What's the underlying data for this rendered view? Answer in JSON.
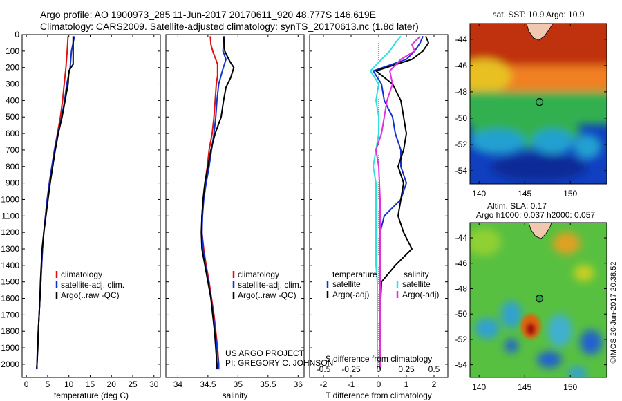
{
  "header": {
    "line1": "Argo profile: AO 1900973_285 11-Jun-2017 20170611_920 48.777S 146.619E",
    "line2": "Climatology: CARS2009. Satellite-adjusted climatology: synTS_20170613.nc (1.8d later)"
  },
  "credit": {
    "project": "US ARGO PROJECT",
    "pi": "PI: GREGORY C. JOHNSON",
    "stamp": "©IMOS 20-Jun-2017 20:38:52"
  },
  "colors": {
    "climatology": "#e01010",
    "satellite": "#1030d0",
    "argo": "#000000",
    "sal_sat": "#30e0e0",
    "sal_argo": "#e030e0"
  },
  "chart_data": [
    {
      "type": "line",
      "id": "temperature",
      "xlabel": "temperature (deg C)",
      "xlim": [
        -1,
        31.5
      ],
      "xticks": [
        0,
        5,
        10,
        15,
        20,
        25,
        30
      ],
      "ylim": [
        2080,
        0
      ],
      "yticks": [
        0,
        100,
        200,
        300,
        400,
        500,
        600,
        700,
        800,
        900,
        1000,
        1100,
        1200,
        1300,
        1400,
        1500,
        1600,
        1700,
        1800,
        1900,
        2000
      ],
      "legend": [
        "climatology",
        "satellite-adj. clim.",
        "Argo(..raw -QC)"
      ],
      "series": [
        {
          "name": "climatology",
          "color": "#e01010",
          "points": [
            [
              9.8,
              10
            ],
            [
              9.6,
              100
            ],
            [
              9.3,
              200
            ],
            [
              8.9,
              300
            ],
            [
              8.5,
              400
            ],
            [
              8.0,
              500
            ],
            [
              7.3,
              600
            ],
            [
              6.6,
              700
            ],
            [
              6.0,
              800
            ],
            [
              5.4,
              900
            ],
            [
              4.9,
              1000
            ],
            [
              4.5,
              1100
            ],
            [
              4.1,
              1200
            ],
            [
              3.8,
              1300
            ],
            [
              3.6,
              1400
            ],
            [
              3.4,
              1500
            ],
            [
              3.2,
              1600
            ],
            [
              3.0,
              1700
            ],
            [
              2.8,
              1800
            ],
            [
              2.6,
              1900
            ],
            [
              2.5,
              2000
            ],
            [
              2.4,
              2030
            ]
          ]
        },
        {
          "name": "satellite-adj. clim.",
          "color": "#1030d0",
          "points": [
            [
              11.3,
              10
            ],
            [
              11.0,
              50
            ],
            [
              10.6,
              100
            ],
            [
              10.3,
              200
            ],
            [
              9.5,
              300
            ],
            [
              9.0,
              400
            ],
            [
              8.3,
              500
            ],
            [
              7.4,
              600
            ],
            [
              6.6,
              700
            ],
            [
              6.0,
              800
            ],
            [
              5.4,
              900
            ],
            [
              4.9,
              1000
            ],
            [
              4.5,
              1100
            ],
            [
              4.1,
              1200
            ],
            [
              3.8,
              1300
            ],
            [
              3.6,
              1400
            ],
            [
              3.4,
              1500
            ],
            [
              3.2,
              1600
            ],
            [
              3.0,
              1700
            ],
            [
              2.8,
              1800
            ],
            [
              2.6,
              1900
            ],
            [
              2.5,
              2000
            ],
            [
              2.4,
              2030
            ]
          ]
        },
        {
          "name": "Argo(..raw -QC)",
          "color": "#000000",
          "points": [
            [
              11.0,
              10
            ],
            [
              11.0,
              100
            ],
            [
              11.0,
              180
            ],
            [
              10.0,
              220
            ],
            [
              9.8,
              300
            ],
            [
              9.1,
              400
            ],
            [
              8.4,
              500
            ],
            [
              7.5,
              600
            ],
            [
              6.8,
              700
            ],
            [
              6.2,
              800
            ],
            [
              5.6,
              900
            ],
            [
              5.1,
              1000
            ],
            [
              4.6,
              1100
            ],
            [
              4.1,
              1200
            ],
            [
              3.7,
              1300
            ],
            [
              3.5,
              1400
            ],
            [
              3.3,
              1500
            ],
            [
              3.2,
              1600
            ],
            [
              3.0,
              1700
            ],
            [
              2.8,
              1800
            ],
            [
              2.7,
              1900
            ],
            [
              2.5,
              2000
            ],
            [
              2.5,
              2030
            ]
          ]
        }
      ]
    },
    {
      "type": "line",
      "id": "salinity",
      "xlabel": "salinity",
      "xlim": [
        33.8,
        36.1
      ],
      "xticks": [
        34,
        34.5,
        35,
        35.5,
        36
      ],
      "ylim": [
        2080,
        0
      ],
      "legend": [
        "climatology",
        "satellite-adj. clim.",
        "Argo(..raw -QC)"
      ],
      "series": [
        {
          "name": "climatology",
          "color": "#e01010",
          "points": [
            [
              34.54,
              10
            ],
            [
              34.55,
              60
            ],
            [
              34.58,
              100
            ],
            [
              34.66,
              180
            ],
            [
              34.66,
              250
            ],
            [
              34.64,
              300
            ],
            [
              34.62,
              400
            ],
            [
              34.6,
              500
            ],
            [
              34.57,
              600
            ],
            [
              34.52,
              700
            ],
            [
              34.49,
              800
            ],
            [
              34.45,
              900
            ],
            [
              34.42,
              1000
            ],
            [
              34.4,
              1100
            ],
            [
              34.4,
              1200
            ],
            [
              34.43,
              1300
            ],
            [
              34.47,
              1400
            ],
            [
              34.52,
              1500
            ],
            [
              34.56,
              1600
            ],
            [
              34.6,
              1700
            ],
            [
              34.63,
              1800
            ],
            [
              34.66,
              1900
            ],
            [
              34.68,
              2000
            ],
            [
              34.68,
              2030
            ]
          ]
        },
        {
          "name": "satellite-adj. clim.",
          "color": "#1030d0",
          "points": [
            [
              34.78,
              10
            ],
            [
              34.76,
              50
            ],
            [
              34.75,
              100
            ],
            [
              34.8,
              150
            ],
            [
              34.74,
              220
            ],
            [
              34.68,
              300
            ],
            [
              34.65,
              400
            ],
            [
              34.63,
              500
            ],
            [
              34.6,
              600
            ],
            [
              34.56,
              700
            ],
            [
              34.52,
              800
            ],
            [
              34.47,
              900
            ],
            [
              34.43,
              1000
            ],
            [
              34.41,
              1100
            ],
            [
              34.4,
              1200
            ],
            [
              34.42,
              1300
            ],
            [
              34.46,
              1400
            ],
            [
              34.51,
              1500
            ],
            [
              34.55,
              1600
            ],
            [
              34.59,
              1700
            ],
            [
              34.62,
              1800
            ],
            [
              34.65,
              1900
            ],
            [
              34.68,
              2000
            ],
            [
              34.68,
              2030
            ]
          ]
        },
        {
          "name": "Argo(..raw -QC)",
          "color": "#000000",
          "points": [
            [
              34.76,
              10
            ],
            [
              34.78,
              100
            ],
            [
              34.86,
              160
            ],
            [
              34.93,
              200
            ],
            [
              34.88,
              260
            ],
            [
              34.8,
              320
            ],
            [
              34.76,
              400
            ],
            [
              34.72,
              500
            ],
            [
              34.62,
              600
            ],
            [
              34.55,
              700
            ],
            [
              34.5,
              800
            ],
            [
              34.45,
              900
            ],
            [
              34.42,
              1000
            ],
            [
              34.4,
              1100
            ],
            [
              34.39,
              1200
            ],
            [
              34.4,
              1300
            ],
            [
              34.45,
              1400
            ],
            [
              34.5,
              1500
            ],
            [
              34.55,
              1600
            ],
            [
              34.58,
              1700
            ],
            [
              34.61,
              1800
            ],
            [
              34.63,
              1900
            ],
            [
              34.65,
              2000
            ],
            [
              34.65,
              2030
            ]
          ]
        }
      ]
    },
    {
      "type": "line",
      "id": "difference",
      "xlabel": "T difference from climatology",
      "xlabel2": "S difference from climatology",
      "xlim": [
        -2.5,
        2.5
      ],
      "xticks": [
        -2,
        -1,
        0,
        1,
        2
      ],
      "xticks2": [
        "-0.5",
        "-0.25",
        "0",
        "0.25",
        "0.5"
      ],
      "ylim": [
        2080,
        0
      ],
      "legend": {
        "temperature_title": "temperature",
        "salinity_title": "salinity",
        "items": [
          "satellite",
          "Argo(-adj)",
          "satellite",
          "Argo(-adj)"
        ]
      },
      "series": [
        {
          "name": "temperature satellite",
          "color": "#1030d0",
          "points": [
            [
              1.6,
              10
            ],
            [
              1.5,
              50
            ],
            [
              1.3,
              100
            ],
            [
              1.0,
              150
            ],
            [
              -0.2,
              220
            ],
            [
              0.1,
              300
            ],
            [
              0.2,
              400
            ],
            [
              0.5,
              500
            ],
            [
              0.6,
              600
            ],
            [
              0.8,
              700
            ],
            [
              0.8,
              800
            ],
            [
              1.0,
              900
            ],
            [
              0.8,
              1000
            ],
            [
              0.2,
              1100
            ],
            [
              0.05,
              1200
            ],
            [
              0.05,
              1300
            ],
            [
              0.05,
              1500
            ],
            [
              0.05,
              1700
            ],
            [
              0.05,
              1900
            ],
            [
              0.05,
              2030
            ]
          ]
        },
        {
          "name": "temperature Argo(-adj)",
          "color": "#000000",
          "points": [
            [
              1.7,
              10
            ],
            [
              1.8,
              50
            ],
            [
              1.6,
              100
            ],
            [
              1.2,
              150
            ],
            [
              -0.1,
              220
            ],
            [
              0.5,
              300
            ],
            [
              0.8,
              400
            ],
            [
              0.9,
              500
            ],
            [
              1.0,
              600
            ],
            [
              0.9,
              700
            ],
            [
              0.7,
              800
            ],
            [
              0.9,
              900
            ],
            [
              0.8,
              1000
            ],
            [
              0.7,
              1100
            ],
            [
              0.9,
              1200
            ],
            [
              1.2,
              1300
            ],
            [
              0.6,
              1400
            ],
            [
              0.1,
              1500
            ],
            [
              0.05,
              1700
            ],
            [
              0.05,
              1900
            ],
            [
              0.05,
              2030
            ]
          ]
        },
        {
          "name": "salinity satellite",
          "color": "#30e0e0",
          "points": [
            [
              0.8,
              10
            ],
            [
              0.6,
              50
            ],
            [
              0.4,
              100
            ],
            [
              0.1,
              150
            ],
            [
              -0.3,
              220
            ],
            [
              0.0,
              300
            ],
            [
              -0.1,
              400
            ],
            [
              0.0,
              500
            ],
            [
              0.0,
              600
            ],
            [
              -0.1,
              700
            ],
            [
              -0.2,
              800
            ],
            [
              -0.1,
              900
            ],
            [
              -0.1,
              1000
            ],
            [
              -0.1,
              1100
            ],
            [
              -0.1,
              1200
            ],
            [
              -0.1,
              1300
            ],
            [
              -0.1,
              1400
            ],
            [
              -0.05,
              1500
            ],
            [
              -0.05,
              1700
            ],
            [
              -0.05,
              1900
            ],
            [
              -0.05,
              2030
            ]
          ]
        },
        {
          "name": "salinity Argo(-adj)",
          "color": "#e030e0",
          "points": [
            [
              1.5,
              10
            ],
            [
              1.2,
              60
            ],
            [
              1.3,
              100
            ],
            [
              0.8,
              150
            ],
            [
              0.4,
              220
            ],
            [
              0.5,
              300
            ],
            [
              0.3,
              400
            ],
            [
              0.2,
              500
            ],
            [
              0.1,
              600
            ],
            [
              -0.1,
              700
            ],
            [
              0.0,
              800
            ],
            [
              0.05,
              1000
            ],
            [
              0.05,
              1200
            ],
            [
              0.05,
              1400
            ],
            [
              0.05,
              1600
            ],
            [
              0.05,
              1800
            ],
            [
              0.05,
              2030
            ]
          ]
        }
      ]
    },
    {
      "type": "heatmap",
      "id": "sst_map",
      "title": "sat. SST: 10.9 Argo: 10.9",
      "xlim": [
        139,
        154
      ],
      "xticks": [
        140,
        145,
        150
      ],
      "ylim": [
        -55,
        -42.8
      ],
      "yticks": [
        -44,
        -46,
        -48,
        -50,
        -52,
        -54
      ],
      "marker": {
        "lon": 146.619,
        "lat": -48.777
      },
      "colormap": "jet"
    },
    {
      "type": "heatmap",
      "id": "sla_map",
      "title": "Altim. SLA: 0.17",
      "subtitle": "Argo h1000: 0.037 h2000: 0.057",
      "xlim": [
        139,
        154
      ],
      "xticks": [
        140,
        145,
        150
      ],
      "ylim": [
        -55,
        -42.8
      ],
      "yticks": [
        -44,
        -46,
        -48,
        -50,
        -52,
        -54
      ],
      "marker": {
        "lon": 146.619,
        "lat": -48.777
      },
      "colormap": "jet"
    }
  ]
}
